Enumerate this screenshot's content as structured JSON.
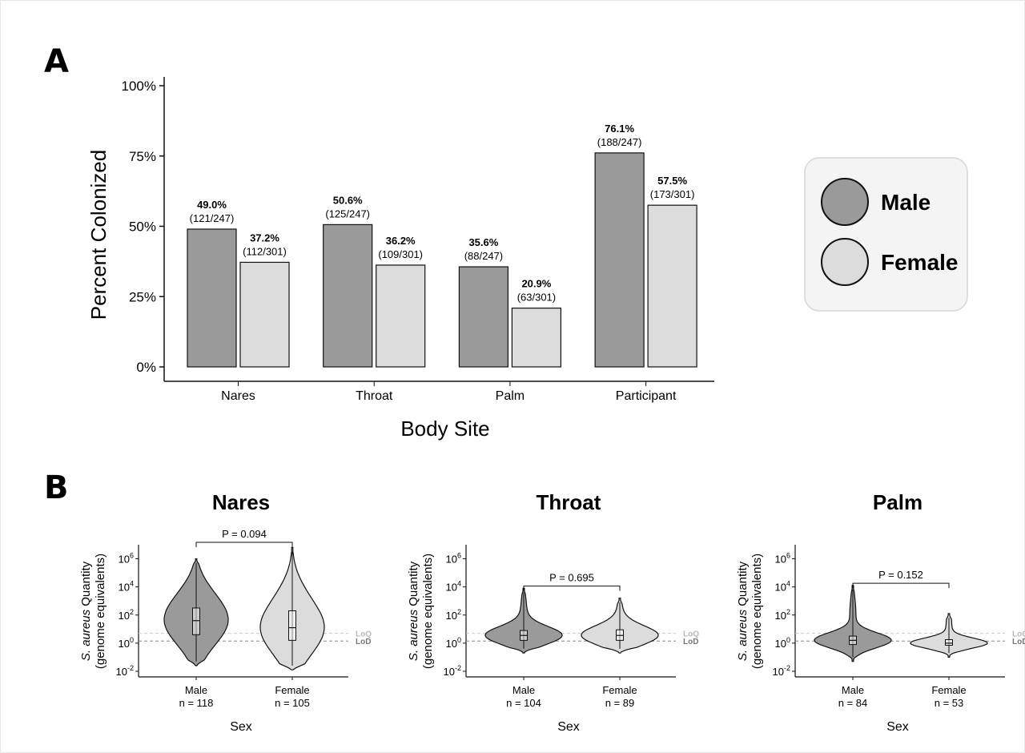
{
  "panel_a_letter": "A",
  "panel_b_letter": "B",
  "legend": {
    "male_label": "Male",
    "female_label": "Female",
    "male_color": "#9a9a9a",
    "female_color": "#dcdcdc"
  },
  "chart_data": [
    {
      "type": "bar",
      "panel": "A",
      "xlabel": "Body Site",
      "ylabel": "Percent Colonized",
      "ylim": [
        0,
        100
      ],
      "yticks": [
        "0%",
        "25%",
        "50%",
        "75%",
        "100%"
      ],
      "ytick_values": [
        0,
        25,
        50,
        75,
        100
      ],
      "categories": [
        "Nares",
        "Throat",
        "Palm",
        "Participant"
      ],
      "series": [
        {
          "name": "Male",
          "color": "#9a9a9a",
          "values": [
            49.0,
            50.6,
            35.6,
            76.1
          ],
          "labels": [
            "49.0%",
            "50.6%",
            "35.6%",
            "76.1%"
          ],
          "fractions": [
            "(121/247)",
            "(125/247)",
            "(88/247)",
            "(188/247)"
          ]
        },
        {
          "name": "Female",
          "color": "#dcdcdc",
          "values": [
            37.2,
            36.2,
            20.9,
            57.5
          ],
          "labels": [
            "37.2%",
            "36.2%",
            "20.9%",
            "57.5%"
          ],
          "fractions": [
            "(112/301)",
            "(109/301)",
            "(63/301)",
            "(173/301)"
          ]
        }
      ],
      "legend_position": "right"
    },
    {
      "type": "violin",
      "panel": "B",
      "title": "Nares",
      "ylabel_line1_italic": "S. aureus",
      "ylabel_line1_rest": " Quantity",
      "ylabel_line2": "(genome equivalents)",
      "xlabel": "Sex",
      "yscale": "log10",
      "ylim": [
        -2.4,
        7
      ],
      "ytick_exponents": [
        -2,
        0,
        2,
        4,
        6
      ],
      "p_value": "P = 0.094",
      "loq_label": "LoQ",
      "lod_label": "LoD",
      "loq_value_log10": 0.7,
      "lod_value_log10": 0.15,
      "groups": [
        {
          "name": "Male",
          "n_label": "n = 118",
          "median_log10": 1.6,
          "q1_log10": 0.6,
          "q3_log10": 2.5,
          "wlo_log10": -1.3,
          "whi_log10": 5.7,
          "color": "#9a9a9a"
        },
        {
          "name": "Female",
          "n_label": "n = 105",
          "median_log10": 1.1,
          "q1_log10": 0.2,
          "q3_log10": 2.3,
          "wlo_log10": -1.6,
          "whi_log10": 6.5,
          "color": "#dcdcdc"
        }
      ]
    },
    {
      "type": "violin",
      "panel": "B",
      "title": "Throat",
      "ylabel_line1_italic": "S. aureus",
      "ylabel_line1_rest": " Quantity",
      "ylabel_line2": "(genome equivalents)",
      "xlabel": "Sex",
      "yscale": "log10",
      "ylim": [
        -2.4,
        7
      ],
      "ytick_exponents": [
        -2,
        0,
        2,
        4,
        6
      ],
      "p_value": "P = 0.695",
      "loq_label": "LoQ",
      "lod_label": "LoD",
      "loq_value_log10": 0.7,
      "lod_value_log10": 0.15,
      "groups": [
        {
          "name": "Male",
          "n_label": "n = 104",
          "median_log10": 0.55,
          "q1_log10": 0.2,
          "q3_log10": 0.9,
          "wlo_log10": -0.4,
          "whi_log10": 3.6,
          "color": "#9a9a9a"
        },
        {
          "name": "Female",
          "n_label": "n = 89",
          "median_log10": 0.55,
          "q1_log10": 0.2,
          "q3_log10": 0.95,
          "wlo_log10": -0.4,
          "whi_log10": 2.9,
          "color": "#dcdcdc"
        }
      ]
    },
    {
      "type": "violin",
      "panel": "B",
      "title": "Palm",
      "ylabel_line1_italic": "S. aureus",
      "ylabel_line1_rest": " Quantity",
      "ylabel_line2": "(genome equivalents)",
      "xlabel": "Sex",
      "yscale": "log10",
      "ylim": [
        -2.4,
        7
      ],
      "ytick_exponents": [
        -2,
        0,
        2,
        4,
        6
      ],
      "p_value": "P = 0.152",
      "loq_label": "LoQ",
      "lod_label": "LoD",
      "loq_value_log10": 0.7,
      "lod_value_log10": 0.15,
      "groups": [
        {
          "name": "Male",
          "n_label": "n = 84",
          "median_log10": 0.2,
          "q1_log10": -0.1,
          "q3_log10": 0.5,
          "wlo_log10": -1.0,
          "whi_log10": 3.8,
          "color": "#9a9a9a"
        },
        {
          "name": "Female",
          "n_label": "n = 53",
          "median_log10": 0.0,
          "q1_log10": -0.15,
          "q3_log10": 0.25,
          "wlo_log10": -0.7,
          "whi_log10": 1.8,
          "color": "#dcdcdc"
        }
      ]
    }
  ]
}
